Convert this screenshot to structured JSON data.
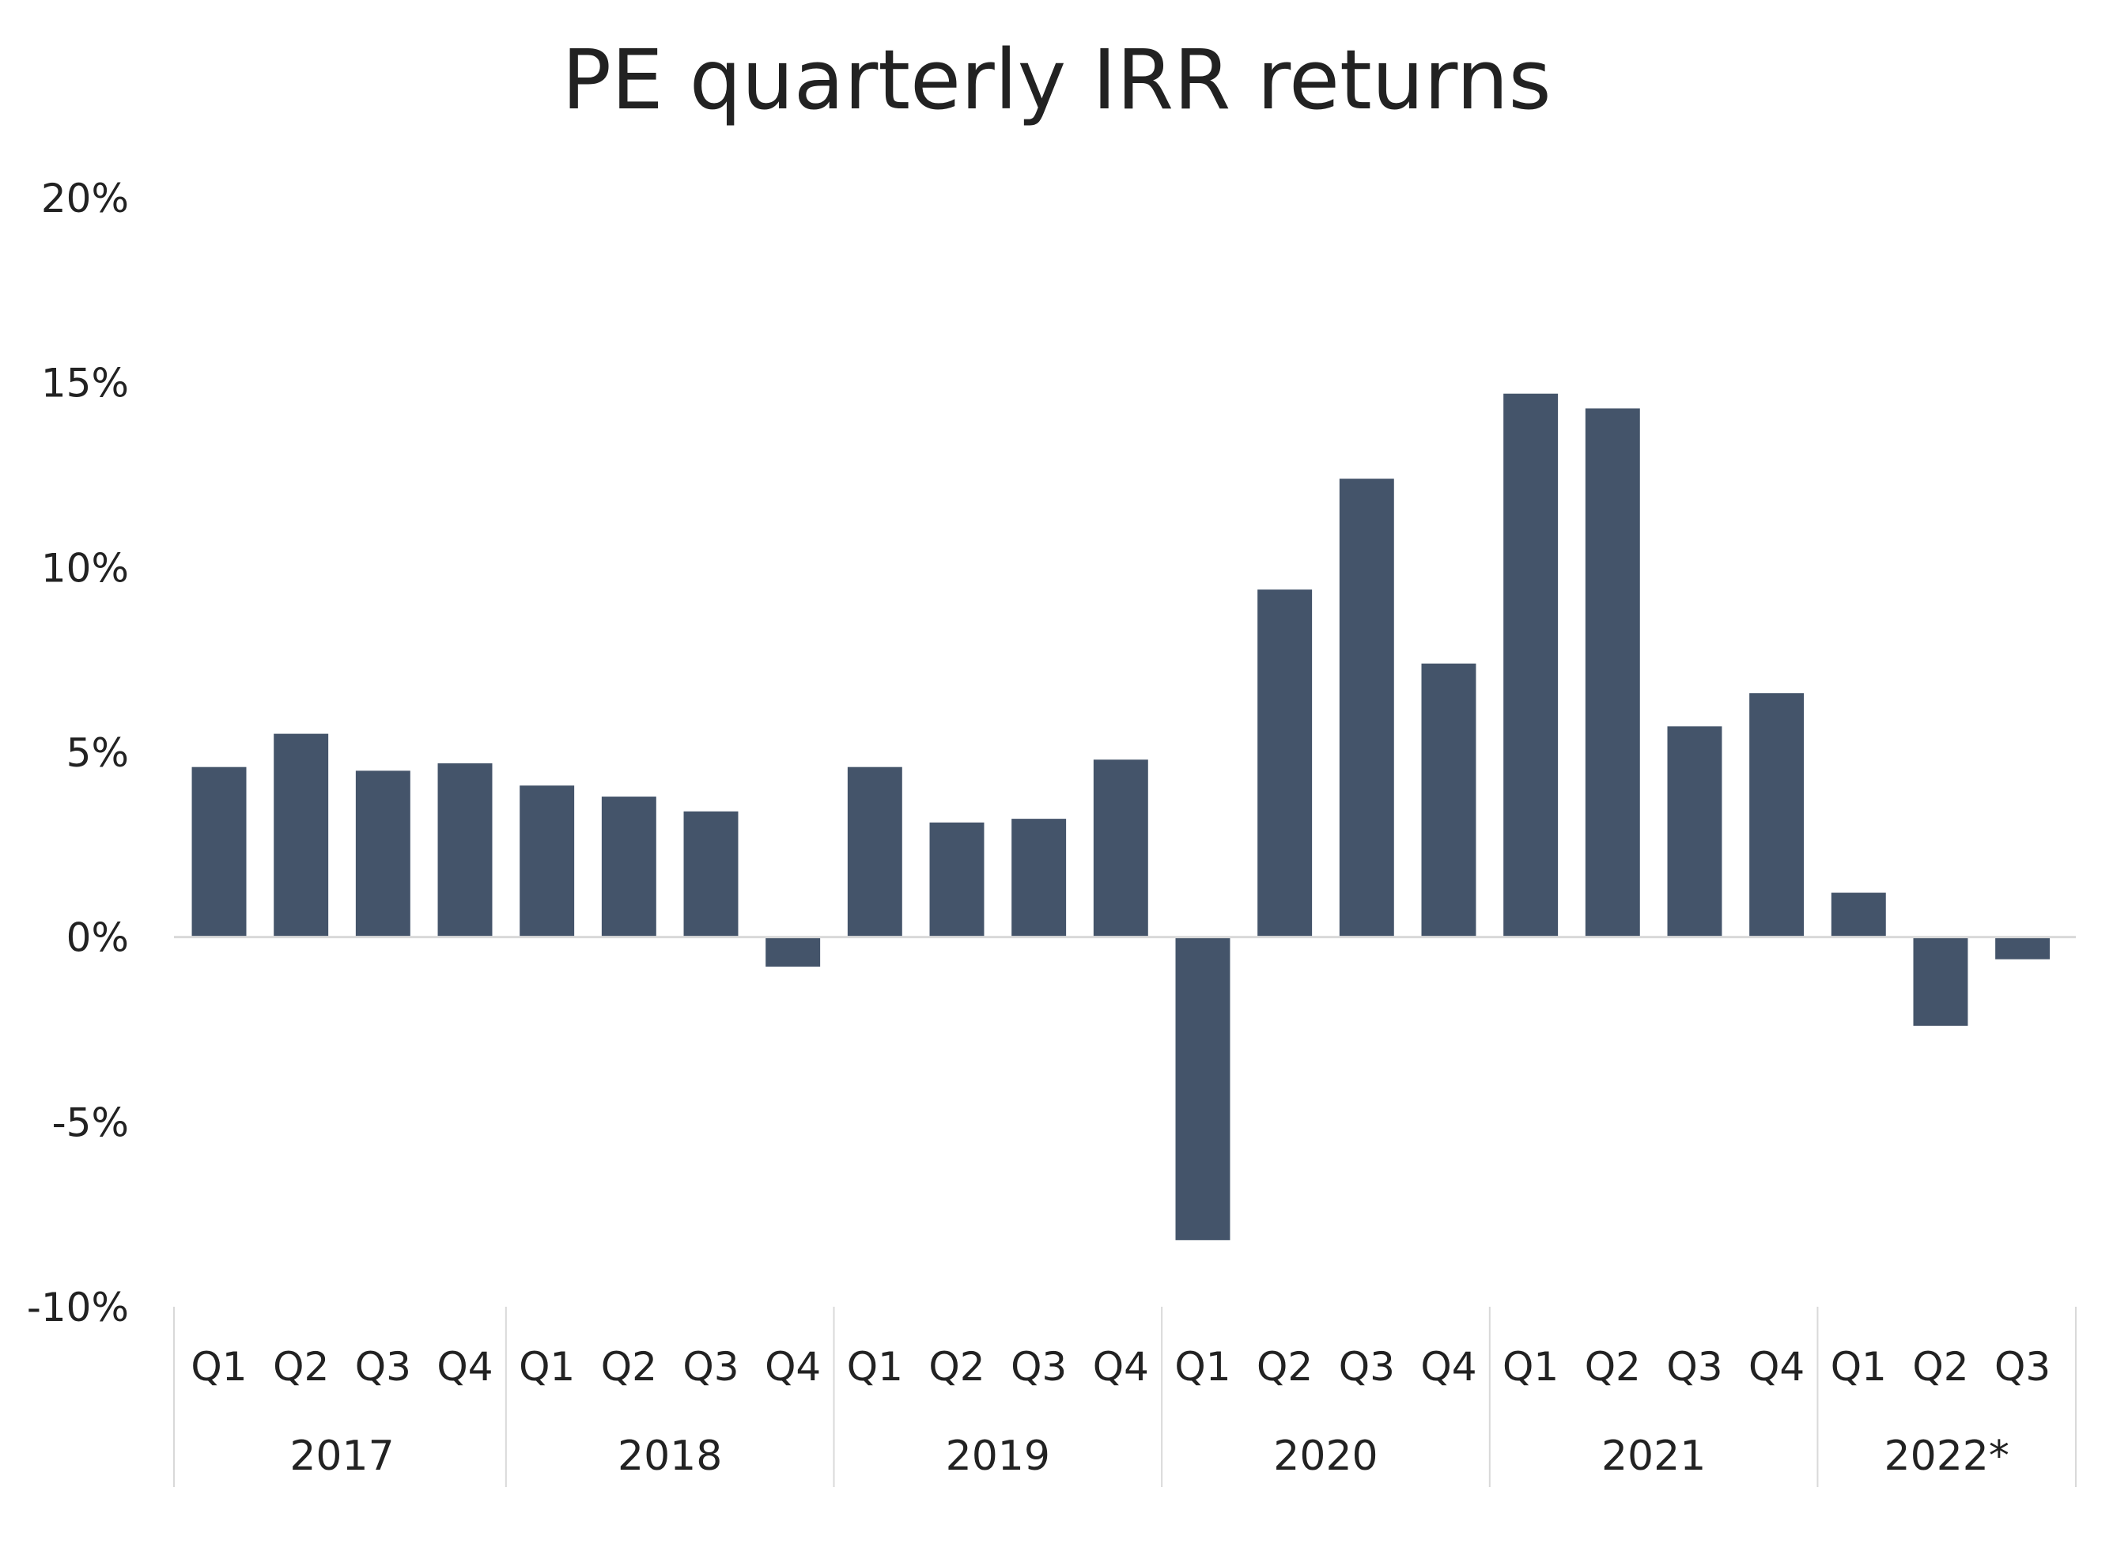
{
  "colors": {
    "bar": "#44546a",
    "axis": "#d9d9d9",
    "text": "#222222"
  },
  "chart_data": {
    "type": "bar",
    "title": "PE quarterly IRR returns",
    "xlabel": "",
    "ylabel": "",
    "ylim": [
      -10,
      20
    ],
    "yticks": [
      20,
      15,
      10,
      5,
      0,
      -5,
      -10
    ],
    "ytick_labels": [
      "20%",
      "15%",
      "10%",
      "5%",
      "0%",
      "-5%",
      "-10%"
    ],
    "grid": false,
    "legend": "none",
    "groups": [
      {
        "label": "2017",
        "categories": [
          "Q1",
          "Q2",
          "Q3",
          "Q4"
        ],
        "values": [
          4.6,
          5.5,
          4.5,
          4.7
        ]
      },
      {
        "label": "2018",
        "categories": [
          "Q1",
          "Q2",
          "Q3",
          "Q4"
        ],
        "values": [
          4.1,
          3.8,
          3.4,
          -0.8
        ]
      },
      {
        "label": "2019",
        "categories": [
          "Q1",
          "Q2",
          "Q3",
          "Q4"
        ],
        "values": [
          4.6,
          3.1,
          3.2,
          4.8
        ]
      },
      {
        "label": "2020",
        "categories": [
          "Q1",
          "Q2",
          "Q3",
          "Q4"
        ],
        "values": [
          -8.2,
          9.4,
          12.4,
          7.4
        ]
      },
      {
        "label": "2021",
        "categories": [
          "Q1",
          "Q2",
          "Q3",
          "Q4"
        ],
        "values": [
          14.7,
          14.3,
          5.7,
          6.6
        ]
      },
      {
        "label": "2022*",
        "categories": [
          "Q1",
          "Q2",
          "Q3"
        ],
        "values": [
          1.2,
          -2.4,
          -0.6
        ]
      }
    ]
  }
}
